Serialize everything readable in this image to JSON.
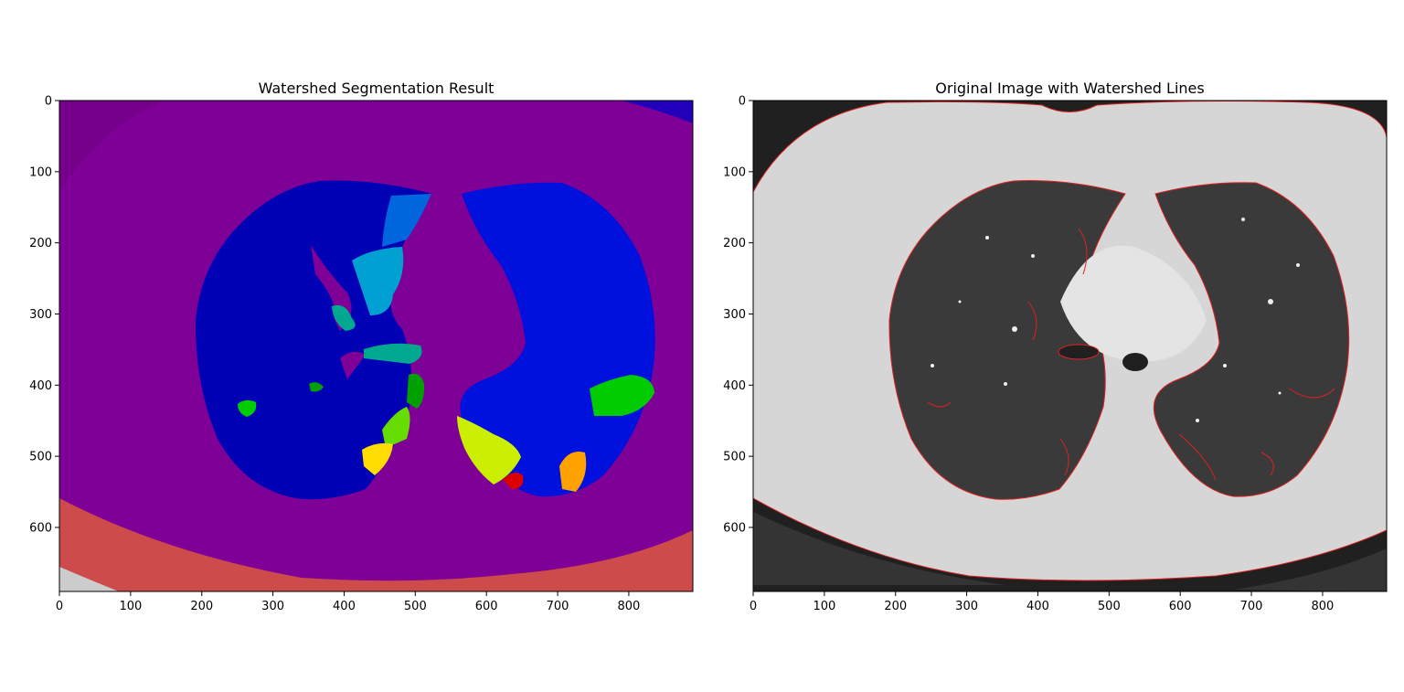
{
  "chart_data": [
    {
      "type": "image",
      "title": "Watershed Segmentation Result",
      "xlabel": "",
      "ylabel": "",
      "xlim": [
        0,
        890
      ],
      "ylim": [
        690,
        0
      ],
      "xticks": [
        0,
        100,
        200,
        300,
        400,
        500,
        600,
        700,
        800
      ],
      "yticks": [
        0,
        100,
        200,
        300,
        400,
        500,
        600
      ],
      "content": "watershed-label-map",
      "colors": {
        "background": "#7f0096",
        "corner": "#76008a",
        "left_lung": "#0000b4",
        "right_lung": "#0010dd",
        "bed": "#cd4b4b",
        "regions": [
          "#0066dd",
          "#00a0d2",
          "#00a890",
          "#00cc00",
          "#00a000",
          "#66dd00",
          "#ccee00",
          "#ffdd00",
          "#ffa200",
          "#dd0000",
          "#2200bb",
          "#cccccc"
        ]
      }
    },
    {
      "type": "image",
      "title": "Original Image with Watershed Lines",
      "xlabel": "",
      "ylabel": "",
      "xlim": [
        0,
        890
      ],
      "ylim": [
        690,
        0
      ],
      "xticks": [
        0,
        100,
        200,
        300,
        400,
        500,
        600,
        700,
        800
      ],
      "yticks": [
        0,
        100,
        200,
        300,
        400,
        500,
        600
      ],
      "content": "ct-scan-with-boundaries",
      "colors": {
        "air": "#202020",
        "tissue": "#d6d6d6",
        "lung": "#3a3a3a",
        "watershed_line": "#dd2222"
      }
    }
  ]
}
